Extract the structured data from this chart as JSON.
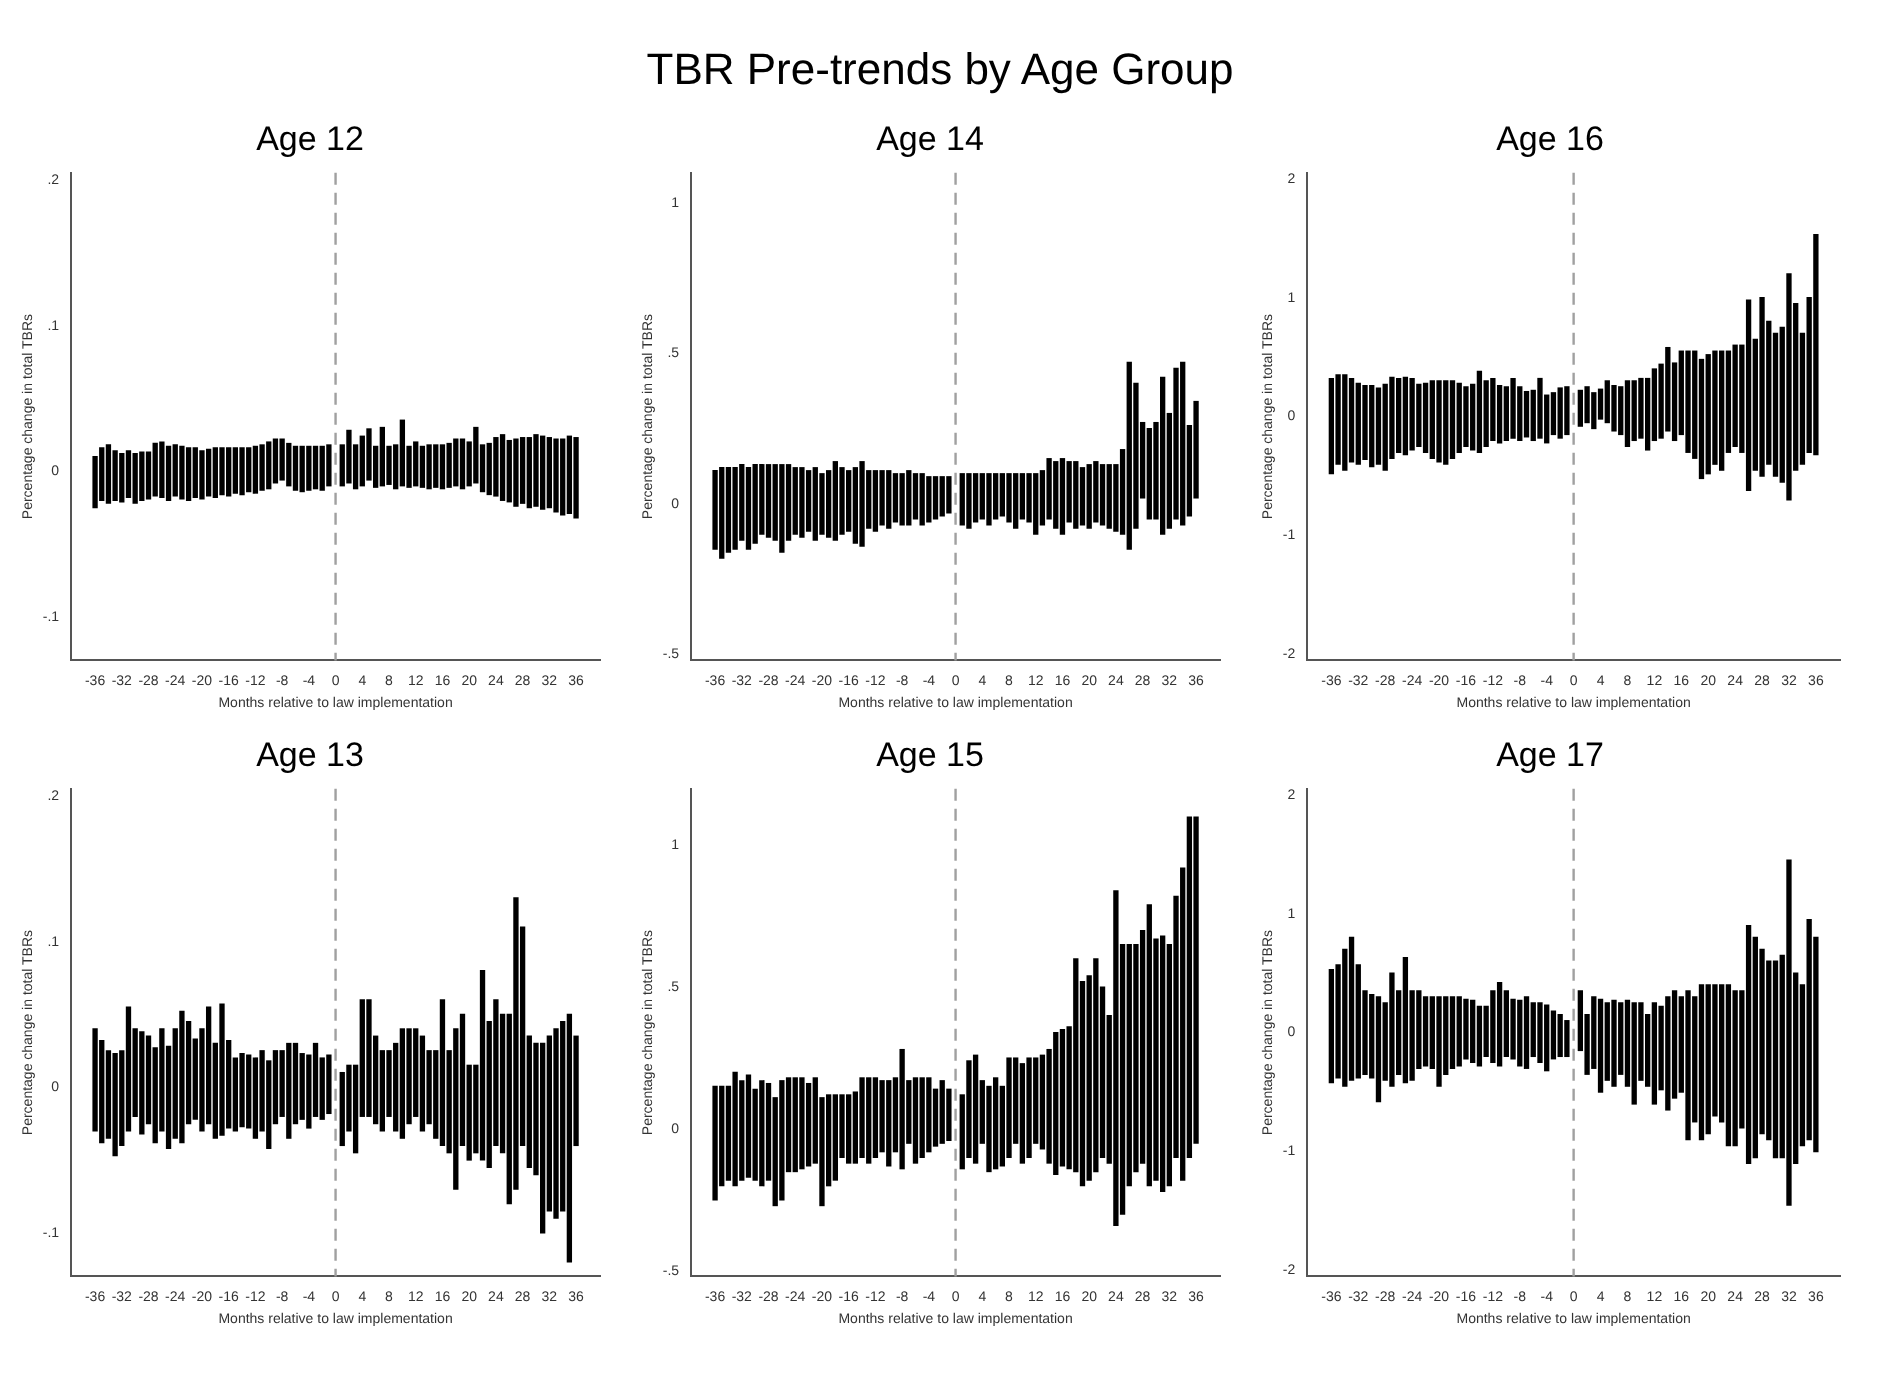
{
  "chart_data": [
    {
      "type": "bar",
      "title": "Age 12",
      "annotations": [
        "TBR Pre-trends by Age Group"
      ],
      "xlabel": "Months relative to law implementation",
      "ylabel": "Percentage change in total TBRs",
      "color": "#000000",
      "x": [
        -36,
        -35,
        -34,
        -33,
        -32,
        -31,
        -30,
        -29,
        -28,
        -27,
        -26,
        -25,
        -24,
        -23,
        -22,
        -21,
        -20,
        -19,
        -18,
        -17,
        -16,
        -15,
        -14,
        -13,
        -12,
        -11,
        -10,
        -9,
        -8,
        -7,
        -6,
        -5,
        -4,
        -3,
        -2,
        -1,
        1,
        2,
        3,
        4,
        5,
        6,
        7,
        8,
        9,
        10,
        11,
        12,
        13,
        14,
        15,
        16,
        17,
        18,
        19,
        20,
        21,
        22,
        23,
        24,
        25,
        26,
        27,
        28,
        29,
        30,
        31,
        32,
        33,
        34,
        35,
        36
      ],
      "base": [
        -0.025,
        -0.02,
        -0.022,
        -0.02,
        -0.021,
        -0.018,
        -0.022,
        -0.02,
        -0.019,
        -0.017,
        -0.018,
        -0.02,
        -0.017,
        -0.019,
        -0.02,
        -0.018,
        -0.019,
        -0.017,
        -0.018,
        -0.016,
        -0.017,
        -0.015,
        -0.016,
        -0.014,
        -0.015,
        -0.013,
        -0.012,
        -0.008,
        -0.006,
        -0.01,
        -0.013,
        -0.014,
        -0.013,
        -0.012,
        -0.013,
        -0.01,
        -0.01,
        -0.008,
        -0.012,
        -0.01,
        -0.006,
        -0.011,
        -0.01,
        -0.009,
        -0.012,
        -0.01,
        -0.011,
        -0.01,
        -0.011,
        -0.012,
        -0.011,
        -0.012,
        -0.011,
        -0.01,
        -0.012,
        -0.01,
        -0.008,
        -0.014,
        -0.016,
        -0.017,
        -0.02,
        -0.021,
        -0.024,
        -0.022,
        -0.025,
        -0.024,
        -0.026,
        -0.025,
        -0.028,
        -0.03,
        -0.029,
        -0.032
      ],
      "values": [
        0.035,
        0.036,
        0.04,
        0.034,
        0.033,
        0.032,
        0.034,
        0.033,
        0.032,
        0.036,
        0.038,
        0.037,
        0.035,
        0.036,
        0.036,
        0.034,
        0.033,
        0.032,
        0.034,
        0.032,
        0.033,
        0.031,
        0.032,
        0.03,
        0.032,
        0.031,
        0.032,
        0.03,
        0.028,
        0.029,
        0.03,
        0.031,
        0.03,
        0.029,
        0.03,
        0.028,
        0.028,
        0.036,
        0.03,
        0.034,
        0.035,
        0.028,
        0.04,
        0.026,
        0.03,
        0.045,
        0.028,
        0.03,
        0.028,
        0.03,
        0.029,
        0.03,
        0.03,
        0.032,
        0.034,
        0.03,
        0.038,
        0.032,
        0.035,
        0.04,
        0.045,
        0.042,
        0.046,
        0.045,
        0.048,
        0.049,
        0.05,
        0.048,
        0.05,
        0.052,
        0.053,
        0.055
      ],
      "ylim": [
        -0.13,
        0.205
      ],
      "yticks": [
        {
          "value": -0.1,
          "label": "-.1"
        },
        0,
        {
          "value": 0.1,
          "label": ".1"
        },
        {
          "value": 0.2,
          "label": ".2"
        }
      ],
      "xlim": [
        -37.5,
        37.5
      ],
      "xticks": [
        -36,
        -32,
        -28,
        -24,
        -20,
        -16,
        -12,
        -8,
        -4,
        0,
        4,
        8,
        12,
        16,
        20,
        24,
        28,
        32,
        36
      ],
      "ref_lines": [
        {
          "axis": "x",
          "value": 0,
          "color": "#a0a0a0",
          "line_style": "dashed"
        }
      ]
    },
    {
      "type": "bar",
      "title": "Age 14",
      "xlabel": "Months relative to law implementation",
      "ylabel": "Percentage change in total TBRs",
      "color": "#000000",
      "x": [
        -36,
        -35,
        -34,
        -33,
        -32,
        -31,
        -30,
        -29,
        -28,
        -27,
        -26,
        -25,
        -24,
        -23,
        -22,
        -21,
        -20,
        -19,
        -18,
        -17,
        -16,
        -15,
        -14,
        -13,
        -12,
        -11,
        -10,
        -9,
        -8,
        -7,
        -6,
        -5,
        -4,
        -3,
        -2,
        -1,
        1,
        2,
        3,
        4,
        5,
        6,
        7,
        8,
        9,
        10,
        11,
        12,
        13,
        14,
        15,
        16,
        17,
        18,
        19,
        20,
        21,
        22,
        23,
        24,
        25,
        26,
        27,
        28,
        29,
        30,
        31,
        32,
        33,
        34,
        35,
        36
      ],
      "base": [
        -0.15,
        -0.18,
        -0.16,
        -0.15,
        -0.12,
        -0.15,
        -0.13,
        -0.1,
        -0.11,
        -0.12,
        -0.16,
        -0.12,
        -0.1,
        -0.11,
        -0.09,
        -0.12,
        -0.1,
        -0.11,
        -0.12,
        -0.1,
        -0.09,
        -0.13,
        -0.14,
        -0.08,
        -0.09,
        -0.07,
        -0.08,
        -0.06,
        -0.07,
        -0.07,
        -0.05,
        -0.07,
        -0.06,
        -0.05,
        -0.04,
        -0.03,
        -0.07,
        -0.08,
        -0.06,
        -0.05,
        -0.07,
        -0.05,
        -0.04,
        -0.06,
        -0.08,
        -0.05,
        -0.06,
        -0.1,
        -0.07,
        -0.05,
        -0.08,
        -0.1,
        -0.06,
        -0.08,
        -0.07,
        -0.08,
        -0.06,
        -0.07,
        -0.08,
        -0.09,
        -0.1,
        -0.15,
        -0.08,
        0.02,
        -0.05,
        -0.05,
        -0.1,
        -0.08,
        -0.05,
        -0.07,
        -0.04,
        0.02
      ],
      "values": [
        0.26,
        0.3,
        0.28,
        0.27,
        0.25,
        0.27,
        0.26,
        0.23,
        0.24,
        0.25,
        0.29,
        0.25,
        0.22,
        0.23,
        0.2,
        0.24,
        0.2,
        0.22,
        0.26,
        0.22,
        0.2,
        0.25,
        0.28,
        0.19,
        0.2,
        0.18,
        0.19,
        0.16,
        0.17,
        0.18,
        0.15,
        0.17,
        0.15,
        0.14,
        0.13,
        0.12,
        0.17,
        0.18,
        0.16,
        0.15,
        0.17,
        0.15,
        0.14,
        0.16,
        0.18,
        0.15,
        0.16,
        0.2,
        0.18,
        0.2,
        0.22,
        0.25,
        0.2,
        0.22,
        0.19,
        0.21,
        0.2,
        0.2,
        0.21,
        0.22,
        0.28,
        0.62,
        0.48,
        0.25,
        0.3,
        0.32,
        0.52,
        0.38,
        0.5,
        0.54,
        0.3,
        0.32
      ],
      "ylim": [
        -0.52,
        1.1
      ],
      "yticks": [
        {
          "value": -0.5,
          "label": "-.5"
        },
        0,
        {
          "value": 0.5,
          "label": ".5"
        },
        1
      ],
      "xlim": [
        -37.5,
        37.5
      ],
      "xticks": [
        -36,
        -32,
        -28,
        -24,
        -20,
        -16,
        -12,
        -8,
        -4,
        0,
        4,
        8,
        12,
        16,
        20,
        24,
        28,
        32,
        36
      ],
      "ref_lines": [
        {
          "axis": "x",
          "value": 0,
          "color": "#a0a0a0",
          "line_style": "dashed"
        }
      ]
    },
    {
      "type": "bar",
      "title": "Age 16",
      "xlabel": "Months relative to law implementation",
      "ylabel": "Percentage change in total TBRs",
      "color": "#000000",
      "x": [
        -36,
        -35,
        -34,
        -33,
        -32,
        -31,
        -30,
        -29,
        -28,
        -27,
        -26,
        -25,
        -24,
        -23,
        -22,
        -21,
        -20,
        -19,
        -18,
        -17,
        -16,
        -15,
        -14,
        -13,
        -12,
        -11,
        -10,
        -9,
        -8,
        -7,
        -6,
        -5,
        -4,
        -3,
        -2,
        -1,
        1,
        2,
        3,
        4,
        5,
        6,
        7,
        8,
        9,
        10,
        11,
        12,
        13,
        14,
        15,
        16,
        17,
        18,
        19,
        20,
        21,
        22,
        23,
        24,
        25,
        26,
        27,
        28,
        29,
        30,
        31,
        32,
        33,
        34,
        35,
        36
      ],
      "base": [
        -0.48,
        -0.4,
        -0.45,
        -0.38,
        -0.4,
        -0.36,
        -0.42,
        -0.4,
        -0.45,
        -0.35,
        -0.3,
        -0.32,
        -0.28,
        -0.25,
        -0.3,
        -0.35,
        -0.38,
        -0.4,
        -0.35,
        -0.3,
        -0.25,
        -0.28,
        -0.3,
        -0.25,
        -0.2,
        -0.22,
        -0.2,
        -0.18,
        -0.2,
        -0.17,
        -0.2,
        -0.18,
        -0.22,
        -0.15,
        -0.18,
        -0.15,
        -0.08,
        -0.05,
        -0.1,
        -0.02,
        -0.05,
        -0.12,
        -0.15,
        -0.25,
        -0.2,
        -0.18,
        -0.28,
        -0.2,
        -0.18,
        -0.12,
        -0.2,
        -0.15,
        -0.3,
        -0.35,
        -0.52,
        -0.48,
        -0.4,
        -0.45,
        -0.3,
        -0.25,
        -0.3,
        -0.62,
        -0.45,
        -0.5,
        -0.4,
        -0.5,
        -0.55,
        -0.7,
        -0.45,
        -0.4,
        -0.3,
        -0.32
      ],
      "values": [
        0.8,
        0.75,
        0.8,
        0.7,
        0.68,
        0.62,
        0.68,
        0.64,
        0.72,
        0.68,
        0.62,
        0.65,
        0.6,
        0.52,
        0.58,
        0.65,
        0.68,
        0.7,
        0.65,
        0.58,
        0.5,
        0.55,
        0.68,
        0.55,
        0.52,
        0.48,
        0.45,
        0.5,
        0.45,
        0.38,
        0.42,
        0.5,
        0.4,
        0.35,
        0.42,
        0.4,
        0.3,
        0.3,
        0.3,
        0.25,
        0.35,
        0.38,
        0.4,
        0.55,
        0.5,
        0.5,
        0.6,
        0.6,
        0.62,
        0.7,
        0.65,
        0.7,
        0.85,
        0.9,
        1.0,
        1.0,
        0.95,
        1.0,
        0.85,
        0.85,
        0.9,
        1.6,
        1.1,
        1.5,
        1.2,
        1.2,
        1.3,
        1.9,
        1.4,
        1.1,
        1.3,
        1.85
      ],
      "ylim": [
        -2.05,
        2.05
      ],
      "yticks": [
        -2,
        -1,
        0,
        1,
        2
      ],
      "xlim": [
        -37.5,
        37.5
      ],
      "xticks": [
        -36,
        -32,
        -28,
        -24,
        -20,
        -16,
        -12,
        -8,
        -4,
        0,
        4,
        8,
        12,
        16,
        20,
        24,
        28,
        32,
        36
      ],
      "ref_lines": [
        {
          "axis": "x",
          "value": 0,
          "color": "#a0a0a0",
          "line_style": "dashed"
        }
      ]
    },
    {
      "type": "bar",
      "title": "Age 13",
      "xlabel": "Months relative to law implementation",
      "ylabel": "Percentage change in total TBRs",
      "color": "#000000",
      "x": [
        -36,
        -35,
        -34,
        -33,
        -32,
        -31,
        -30,
        -29,
        -28,
        -27,
        -26,
        -25,
        -24,
        -23,
        -22,
        -21,
        -20,
        -19,
        -18,
        -17,
        -16,
        -15,
        -14,
        -13,
        -12,
        -11,
        -10,
        -9,
        -8,
        -7,
        -6,
        -5,
        -4,
        -3,
        -2,
        -1,
        1,
        2,
        3,
        4,
        5,
        6,
        7,
        8,
        9,
        10,
        11,
        12,
        13,
        14,
        15,
        16,
        17,
        18,
        19,
        20,
        21,
        22,
        23,
        24,
        25,
        26,
        27,
        28,
        29,
        30,
        31,
        32,
        33,
        34,
        35,
        36
      ],
      "base": [
        -0.03,
        -0.038,
        -0.035,
        -0.047,
        -0.04,
        -0.03,
        -0.02,
        -0.032,
        -0.025,
        -0.038,
        -0.03,
        -0.042,
        -0.035,
        -0.038,
        -0.025,
        -0.022,
        -0.03,
        -0.025,
        -0.035,
        -0.033,
        -0.028,
        -0.03,
        -0.027,
        -0.028,
        -0.035,
        -0.03,
        -0.042,
        -0.025,
        -0.02,
        -0.035,
        -0.025,
        -0.022,
        -0.028,
        -0.02,
        -0.022,
        -0.018,
        -0.04,
        -0.03,
        -0.045,
        -0.02,
        -0.02,
        -0.025,
        -0.03,
        -0.02,
        -0.03,
        -0.035,
        -0.025,
        -0.02,
        -0.03,
        -0.025,
        -0.035,
        -0.04,
        -0.045,
        -0.07,
        -0.04,
        -0.05,
        -0.045,
        -0.05,
        -0.055,
        -0.04,
        -0.045,
        -0.08,
        -0.07,
        -0.04,
        -0.055,
        -0.06,
        -0.1,
        -0.085,
        -0.09,
        -0.085,
        -0.12,
        -0.04
      ],
      "values": [
        0.07,
        0.07,
        0.06,
        0.07,
        0.065,
        0.085,
        0.06,
        0.07,
        0.06,
        0.065,
        0.07,
        0.07,
        0.075,
        0.09,
        0.07,
        0.055,
        0.07,
        0.08,
        0.065,
        0.09,
        0.06,
        0.05,
        0.05,
        0.05,
        0.055,
        0.055,
        0.06,
        0.05,
        0.045,
        0.065,
        0.055,
        0.045,
        0.05,
        0.05,
        0.042,
        0.04,
        0.05,
        0.045,
        0.06,
        0.08,
        0.08,
        0.06,
        0.055,
        0.045,
        0.06,
        0.075,
        0.065,
        0.06,
        0.065,
        0.05,
        0.06,
        0.1,
        0.07,
        0.11,
        0.09,
        0.065,
        0.06,
        0.13,
        0.1,
        0.1,
        0.095,
        0.13,
        0.2,
        0.15,
        0.09,
        0.09,
        0.13,
        0.12,
        0.13,
        0.13,
        0.17,
        0.075
      ],
      "ylim": [
        -0.13,
        0.205
      ],
      "yticks": [
        {
          "value": -0.1,
          "label": "-.1"
        },
        0,
        {
          "value": 0.1,
          "label": ".1"
        },
        {
          "value": 0.2,
          "label": ".2"
        }
      ],
      "xlim": [
        -37.5,
        37.5
      ],
      "xticks": [
        -36,
        -32,
        -28,
        -24,
        -20,
        -16,
        -12,
        -8,
        -4,
        0,
        4,
        8,
        12,
        16,
        20,
        24,
        28,
        32,
        36
      ],
      "ref_lines": [
        {
          "axis": "x",
          "value": 0,
          "color": "#a0a0a0",
          "line_style": "dashed"
        }
      ]
    },
    {
      "type": "bar",
      "title": "Age 15",
      "xlabel": "Months relative to law implementation",
      "ylabel": "Percentage change in total TBRs",
      "color": "#000000",
      "x": [
        -36,
        -35,
        -34,
        -33,
        -32,
        -31,
        -30,
        -29,
        -28,
        -27,
        -26,
        -25,
        -24,
        -23,
        -22,
        -21,
        -20,
        -19,
        -18,
        -17,
        -16,
        -15,
        -14,
        -13,
        -12,
        -11,
        -10,
        -9,
        -8,
        -7,
        -6,
        -5,
        -4,
        -3,
        -2,
        -1,
        1,
        2,
        3,
        4,
        5,
        6,
        7,
        8,
        9,
        10,
        11,
        12,
        13,
        14,
        15,
        16,
        17,
        18,
        19,
        20,
        21,
        22,
        23,
        24,
        25,
        26,
        27,
        28,
        29,
        30,
        31,
        32,
        33,
        34,
        35,
        36
      ],
      "base": [
        -0.25,
        -0.2,
        -0.18,
        -0.2,
        -0.18,
        -0.17,
        -0.18,
        -0.2,
        -0.18,
        -0.27,
        -0.25,
        -0.15,
        -0.15,
        -0.14,
        -0.13,
        -0.12,
        -0.27,
        -0.2,
        -0.18,
        -0.1,
        -0.12,
        -0.12,
        -0.1,
        -0.12,
        -0.1,
        -0.08,
        -0.13,
        -0.08,
        -0.14,
        -0.05,
        -0.12,
        -0.1,
        -0.08,
        -0.06,
        -0.05,
        -0.04,
        -0.14,
        -0.1,
        -0.12,
        -0.05,
        -0.15,
        -0.14,
        -0.13,
        -0.1,
        -0.05,
        -0.12,
        -0.1,
        -0.05,
        -0.07,
        -0.12,
        -0.16,
        -0.13,
        -0.14,
        -0.15,
        -0.2,
        -0.18,
        -0.15,
        -0.1,
        -0.12,
        -0.34,
        -0.3,
        -0.2,
        -0.15,
        -0.12,
        -0.2,
        -0.18,
        -0.22,
        -0.2,
        -0.1,
        -0.18,
        -0.1,
        -0.05
      ],
      "values": [
        0.4,
        0.35,
        0.33,
        0.4,
        0.35,
        0.36,
        0.32,
        0.37,
        0.34,
        0.38,
        0.42,
        0.33,
        0.33,
        0.32,
        0.29,
        0.3,
        0.38,
        0.32,
        0.3,
        0.22,
        0.24,
        0.25,
        0.28,
        0.3,
        0.28,
        0.25,
        0.3,
        0.26,
        0.42,
        0.22,
        0.3,
        0.28,
        0.26,
        0.2,
        0.22,
        0.18,
        0.26,
        0.34,
        0.38,
        0.22,
        0.3,
        0.32,
        0.28,
        0.35,
        0.3,
        0.35,
        0.35,
        0.3,
        0.33,
        0.4,
        0.5,
        0.48,
        0.5,
        0.75,
        0.72,
        0.72,
        0.75,
        0.6,
        0.52,
        1.18,
        0.95,
        0.85,
        0.8,
        0.82,
        0.99,
        0.85,
        0.9,
        0.85,
        0.92,
        1.1,
        1.2,
        1.15
      ],
      "ylim": [
        -0.52,
        1.2
      ],
      "yticks": [
        {
          "value": -0.5,
          "label": "-.5"
        },
        0,
        {
          "value": 0.5,
          "label": ".5"
        },
        1
      ],
      "xlim": [
        -37.5,
        37.5
      ],
      "xticks": [
        -36,
        -32,
        -28,
        -24,
        -20,
        -16,
        -12,
        -8,
        -4,
        0,
        4,
        8,
        12,
        16,
        20,
        24,
        28,
        32,
        36
      ],
      "ref_lines": [
        {
          "axis": "x",
          "value": 0,
          "color": "#a0a0a0",
          "line_style": "dashed"
        }
      ]
    },
    {
      "type": "bar",
      "title": "Age 17",
      "xlabel": "Months relative to law implementation",
      "ylabel": "Percentage change in total TBRs",
      "color": "#000000",
      "x": [
        -36,
        -35,
        -34,
        -33,
        -32,
        -31,
        -30,
        -29,
        -28,
        -27,
        -26,
        -25,
        -24,
        -23,
        -22,
        -21,
        -20,
        -19,
        -18,
        -17,
        -16,
        -15,
        -14,
        -13,
        -12,
        -11,
        -10,
        -9,
        -8,
        -7,
        -6,
        -5,
        -4,
        -3,
        -2,
        -1,
        1,
        2,
        3,
        4,
        5,
        6,
        7,
        8,
        9,
        10,
        11,
        12,
        13,
        14,
        15,
        16,
        17,
        18,
        19,
        20,
        21,
        22,
        23,
        24,
        25,
        26,
        27,
        28,
        29,
        30,
        31,
        32,
        33,
        34,
        35,
        36
      ],
      "base": [
        -0.42,
        -0.38,
        -0.45,
        -0.4,
        -0.38,
        -0.35,
        -0.38,
        -0.58,
        -0.4,
        -0.45,
        -0.35,
        -0.42,
        -0.4,
        -0.3,
        -0.28,
        -0.3,
        -0.45,
        -0.35,
        -0.3,
        -0.28,
        -0.22,
        -0.25,
        -0.28,
        -0.2,
        -0.25,
        -0.28,
        -0.2,
        -0.22,
        -0.28,
        -0.3,
        -0.2,
        -0.25,
        -0.32,
        -0.22,
        -0.2,
        -0.2,
        -0.15,
        -0.35,
        -0.3,
        -0.5,
        -0.4,
        -0.45,
        -0.35,
        -0.45,
        -0.6,
        -0.4,
        -0.45,
        -0.6,
        -0.48,
        -0.65,
        -0.55,
        -0.5,
        -0.9,
        -0.75,
        -0.9,
        -0.85,
        -0.7,
        -0.75,
        -0.95,
        -0.95,
        -0.8,
        -1.1,
        -1.05,
        -0.85,
        -0.9,
        -1.05,
        -1.05,
        -1.45,
        -1.1,
        -0.95,
        -0.9,
        -1.0
      ],
      "values": [
        0.95,
        0.95,
        1.15,
        1.2,
        0.95,
        0.7,
        0.7,
        0.88,
        0.65,
        0.95,
        0.7,
        1.05,
        0.75,
        0.65,
        0.58,
        0.6,
        0.75,
        0.65,
        0.6,
        0.58,
        0.5,
        0.52,
        0.5,
        0.42,
        0.6,
        0.7,
        0.55,
        0.5,
        0.55,
        0.6,
        0.45,
        0.5,
        0.55,
        0.4,
        0.35,
        0.3,
        0.5,
        0.5,
        0.6,
        0.78,
        0.65,
        0.72,
        0.6,
        0.72,
        0.85,
        0.65,
        0.6,
        0.85,
        0.7,
        0.95,
        0.9,
        0.8,
        1.25,
        1.05,
        1.3,
        1.25,
        1.1,
        1.15,
        1.35,
        1.3,
        1.15,
        2.0,
        1.85,
        1.55,
        1.5,
        1.65,
        1.7,
        2.9,
        1.6,
        1.35,
        1.85,
        1.8
      ],
      "ylim": [
        -2.05,
        2.05
      ],
      "yticks": [
        -2,
        -1,
        0,
        1,
        2
      ],
      "xlim": [
        -37.5,
        37.5
      ],
      "xticks": [
        -36,
        -32,
        -28,
        -24,
        -20,
        -16,
        -12,
        -8,
        -4,
        0,
        4,
        8,
        12,
        16,
        20,
        24,
        28,
        32,
        36
      ],
      "ref_lines": [
        {
          "axis": "x",
          "value": 0,
          "color": "#a0a0a0",
          "line_style": "dashed"
        }
      ]
    }
  ]
}
